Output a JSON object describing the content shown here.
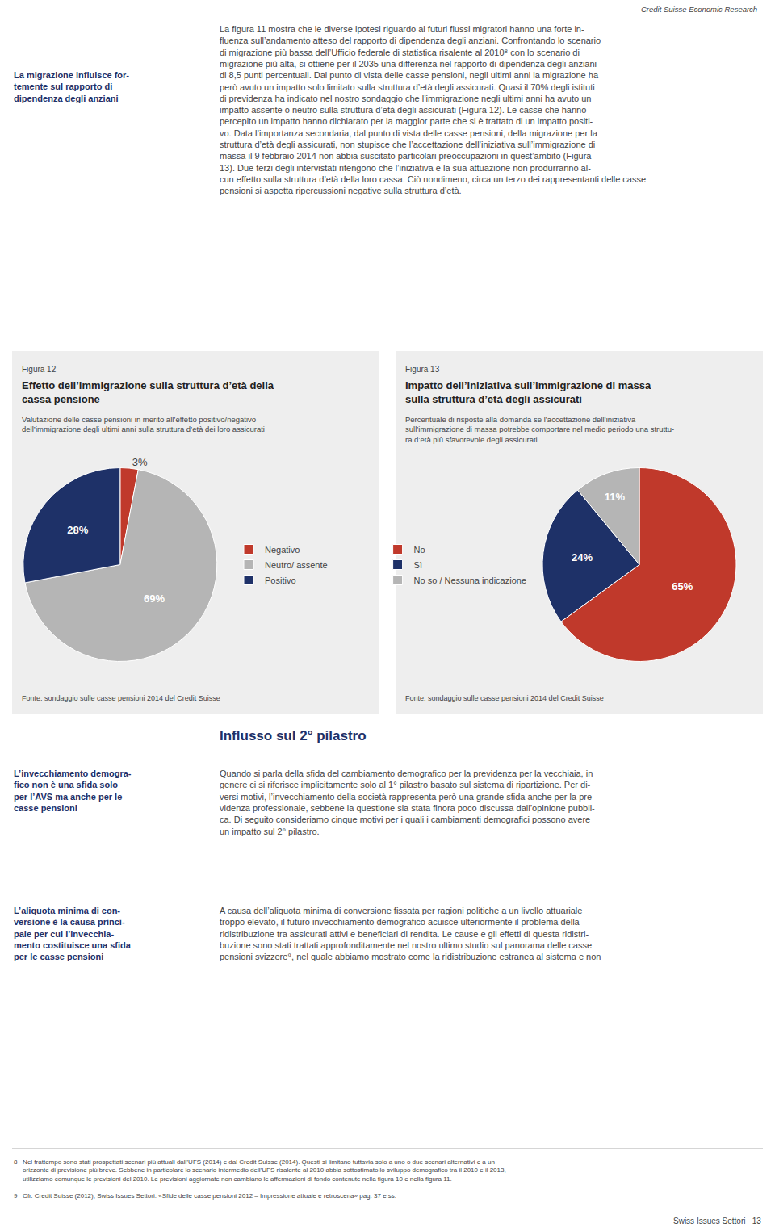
{
  "chart_data": [
    {
      "type": "pie",
      "title": "Effetto dell’immigrazione sulla struttura d’età della\ncassa pensione",
      "subtitle": "Valutazione delle casse pensioni in merito all’effetto positivo/negativo\ndell’immigrazione degli ultimi anni sulla struttura d’età dei loro assicurati",
      "categories": [
        "Negativo",
        "Neutro/ assente",
        "Positivo"
      ],
      "values": [
        3,
        69,
        28
      ],
      "value_labels": [
        "3%",
        "69%",
        "28%"
      ],
      "colors": [
        "#c0392b",
        "#b5b5b5",
        "#1e3168"
      ],
      "data_labels": true,
      "legend": "right",
      "annotations": [
        "Credit Suisse Economic Research",
        "La migrazione influisce for-\ntemente sul rapporto di\ndipendenza degli anziani",
        "La figura 11 mostra che le diverse ipotesi riguardo ai futuri flussi migratori hanno una forte in-\nfluenza sull’andamento atteso del rapporto di dipendenza degli anziani. Confrontando lo scenario\ndi migrazione più bassa dell’Ufficio federale di statistica risalente al 2010⁸ con lo scenario di\nmigrazione più alta, si ottiene per il 2035 una differenza nel rapporto di dipendenza degli anziani\ndi 8,5 punti percentuali. Dal punto di vista delle casse pensioni, negli ultimi anni la migrazione ha\nperò avuto un impatto solo limitato sulla struttura d’età degli assicurati. Quasi il 70% degli istituti\ndi previdenza ha indicato nel nostro sondaggio che l’immigrazione negli ultimi anni ha avuto un\nimpatto assente o neutro sulla struttura d’età degli assicurati (Figura 12). Le casse che hanno\npercepito un impatto hanno dichiarato per la maggior parte che si è trattato di un impatto positi-\nvo. Data l’importanza secondaria, dal punto di vista delle casse pensioni, della migrazione per la\nstruttura d’età degli assicurati, non stupisce che l’accettazione dell’iniziativa sull’immigrazione di\nmassa il 9 febbraio 2014 non abbia suscitato particolari preoccupazioni in quest’ambito (Figura\n13). Due terzi degli intervistati ritengono che l’iniziativa e la sua attuazione non produrranno al-\ncun effetto sulla struttura d’età della loro cassa. Ciò nondimeno, circa un terzo dei rappresentanti delle casse pensioni si aspetta ripercussioni negative sulla struttura d’età.",
        "Figura 12",
        "Fonte: sondaggio sulle casse pensioni 2014 del Credit Suisse"
      ]
    },
    {
      "type": "pie",
      "title": "Impatto dell’iniziativa sull’immigrazione di massa\nsulla struttura d’età degli assicurati",
      "subtitle": "Percentuale di risposte alla domanda se l’accettazione dell’iniziativa\nsull’immigrazione di massa potrebbe comportare nel medio periodo una struttu-\nra d’età più sfavorevole degli assicurati",
      "categories": [
        "No",
        "Sì",
        "No so / Nessuna indicazione"
      ],
      "values": [
        65,
        24,
        11
      ],
      "value_labels": [
        "65%",
        "24%",
        "11%"
      ],
      "colors": [
        "#c0392b",
        "#1e3168",
        "#b5b5b5"
      ],
      "data_labels": true,
      "legend": "left",
      "annotations": [
        "Figura 13",
        "Fonte: sondaggio sulle casse pensioni 2014 del Credit Suisse",
        "Influsso sul 2° pilastro",
        "L’invecchiamento demogra-\nfico non è una sfida solo\nper l’AVS ma anche per le\ncasse pensioni",
        "Quando si parla della sfida del cambiamento demografico per la previdenza per la vecchiaia, in\ngenere ci si riferisce implicitamente solo al 1° pilastro basato sul sistema di ripartizione. Per di-\nversi motivi, l’invecchiamento della società rappresenta però una grande sfida anche per la pre-\nvidenza professionale, sebbene la questione sia stata finora poco discussa dall’opinione pubbli-\nca. Di seguito consideriamo cinque motivi per i quali i cambiamenti demografici possono avere\nun impatto sul 2° pilastro.",
        "L’aliquota minima di con-\nversione è la causa princi-\npale per cui l’invecchia-\nmento costituisce una sfida\nper le casse pensioni",
        "A causa dell’aliquota minima di conversione fissata per ragioni politiche a un livello attuariale\ntroppo elevato, il futuro invecchiamento demografico acuisce ulteriormente il problema della\nridistribuzione tra assicurati attivi e beneficiari di rendita. Le cause e gli effetti di questa ridistri-\nbuzione sono stati trattati approfonditamente nel nostro ultimo studio sul panorama delle casse\npensioni svizzere⁹, nel quale abbiamo mostrato come la ridistribuzione estranea al sistema e non",
        "8   Nel frattempo sono stati prospettati scenari più attuali dall’UFS (2014) e dal Credit Suisse (2014). Questi si limitano tuttavia solo a uno o due scenari alternativi e a un\n     orizzonte di previsione più breve. Sebbene in particolare lo scenario intermedio dell’UFS risalente al 2010 abbia sottostimato lo sviluppo demografico tra il 2010 e il 2013,\n     utilizziamo comunque le previsioni del 2010. Le previsioni aggiornate non cambiano le affermazioni di fondo contenute nella figura 10 e nella figura 11.\n\n9   Cfr. Credit Suisse (2012), Swiss Issues Settori: «Sfide delle casse pensioni 2012 – Impressione attuale e retroscena» pag. 37 e ss.",
        "Swiss Issues Settori   13"
      ]
    }
  ]
}
